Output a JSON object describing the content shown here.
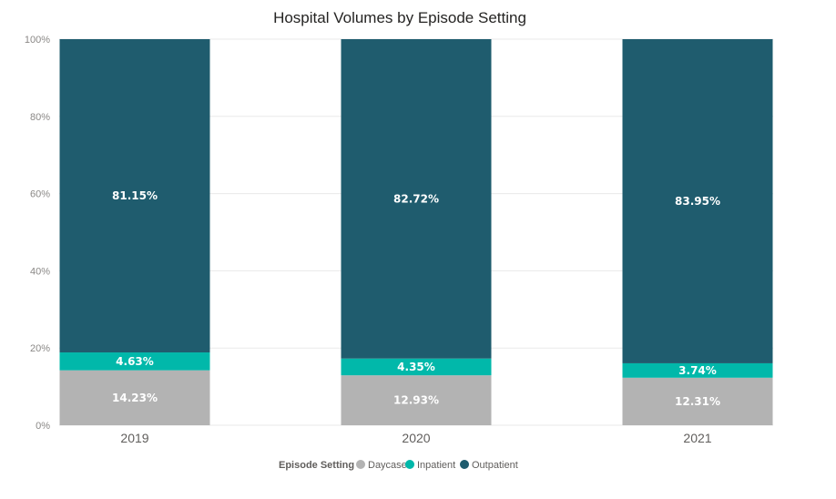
{
  "colors": {
    "daycase": "#b3b3b3",
    "inpatient": "#01b8aa",
    "outpatient": "#1f5c6e",
    "gridline": "#eaeaea"
  },
  "chart_data": {
    "type": "bar",
    "stacked": true,
    "percent_stacked": true,
    "title": "Hospital Volumes by Episode Setting",
    "categories": [
      "2019",
      "2020",
      "2021"
    ],
    "series": [
      {
        "name": "Daycase",
        "values": [
          14.23,
          12.93,
          12.31
        ],
        "labels": [
          "14.23%",
          "12.93%",
          "12.31%"
        ],
        "color": "#b3b3b3"
      },
      {
        "name": "Inpatient",
        "values": [
          4.63,
          4.35,
          3.74
        ],
        "labels": [
          "4.63%",
          "4.35%",
          "3.74%"
        ],
        "color": "#01b8aa"
      },
      {
        "name": "Outpatient",
        "values": [
          81.15,
          82.72,
          83.95
        ],
        "labels": [
          "81.15%",
          "82.72%",
          "83.95%"
        ],
        "color": "#1f5c6e"
      }
    ],
    "ylim": [
      0,
      100
    ],
    "yticks": [
      "0%",
      "20%",
      "40%",
      "60%",
      "80%",
      "100%"
    ],
    "ytick_values": [
      0,
      20,
      40,
      60,
      80,
      100
    ],
    "grid": true,
    "legend": {
      "title": "Episode Setting",
      "position": "bottom-center"
    }
  }
}
